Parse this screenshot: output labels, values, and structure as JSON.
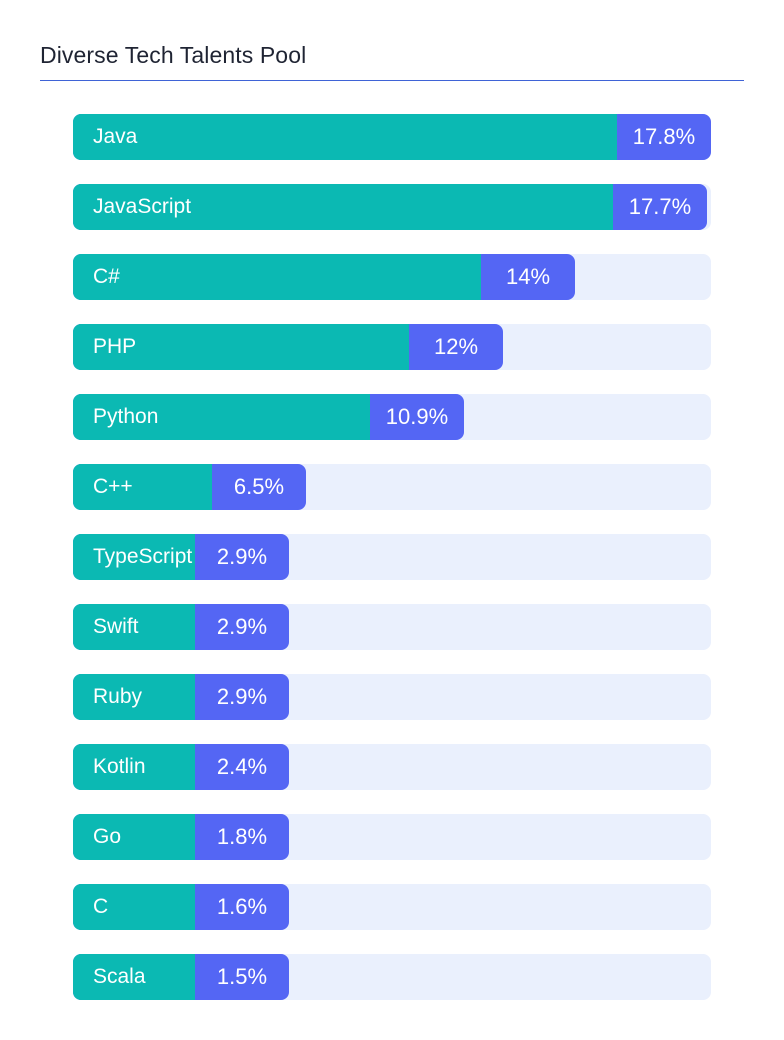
{
  "title": "Diverse Tech Talents Pool",
  "colors": {
    "label_segment": "#0bb9b3",
    "value_segment": "#5466f4",
    "track": "#eaf0fd",
    "divider": "#3f63d6"
  },
  "chart_data": {
    "type": "bar",
    "orientation": "horizontal",
    "title": "Diverse Tech Talents Pool",
    "unit": "%",
    "xlim": [
      0,
      17.8
    ],
    "grid": false,
    "categories": [
      "Java",
      "JavaScript",
      "C#",
      "PHP",
      "Python",
      "C++",
      "TypeScript",
      "Swift",
      "Ruby",
      "Kotlin",
      "Go",
      "C",
      "Scala"
    ],
    "values": [
      17.8,
      17.7,
      14,
      12,
      10.9,
      6.5,
      2.9,
      2.9,
      2.9,
      2.4,
      1.8,
      1.6,
      1.5
    ],
    "value_labels": [
      "17.8%",
      "17.7%",
      "14%",
      "12%",
      "10.9%",
      "6.5%",
      "2.9%",
      "2.9%",
      "2.9%",
      "2.4%",
      "1.8%",
      "1.6%",
      "1.5%"
    ]
  }
}
